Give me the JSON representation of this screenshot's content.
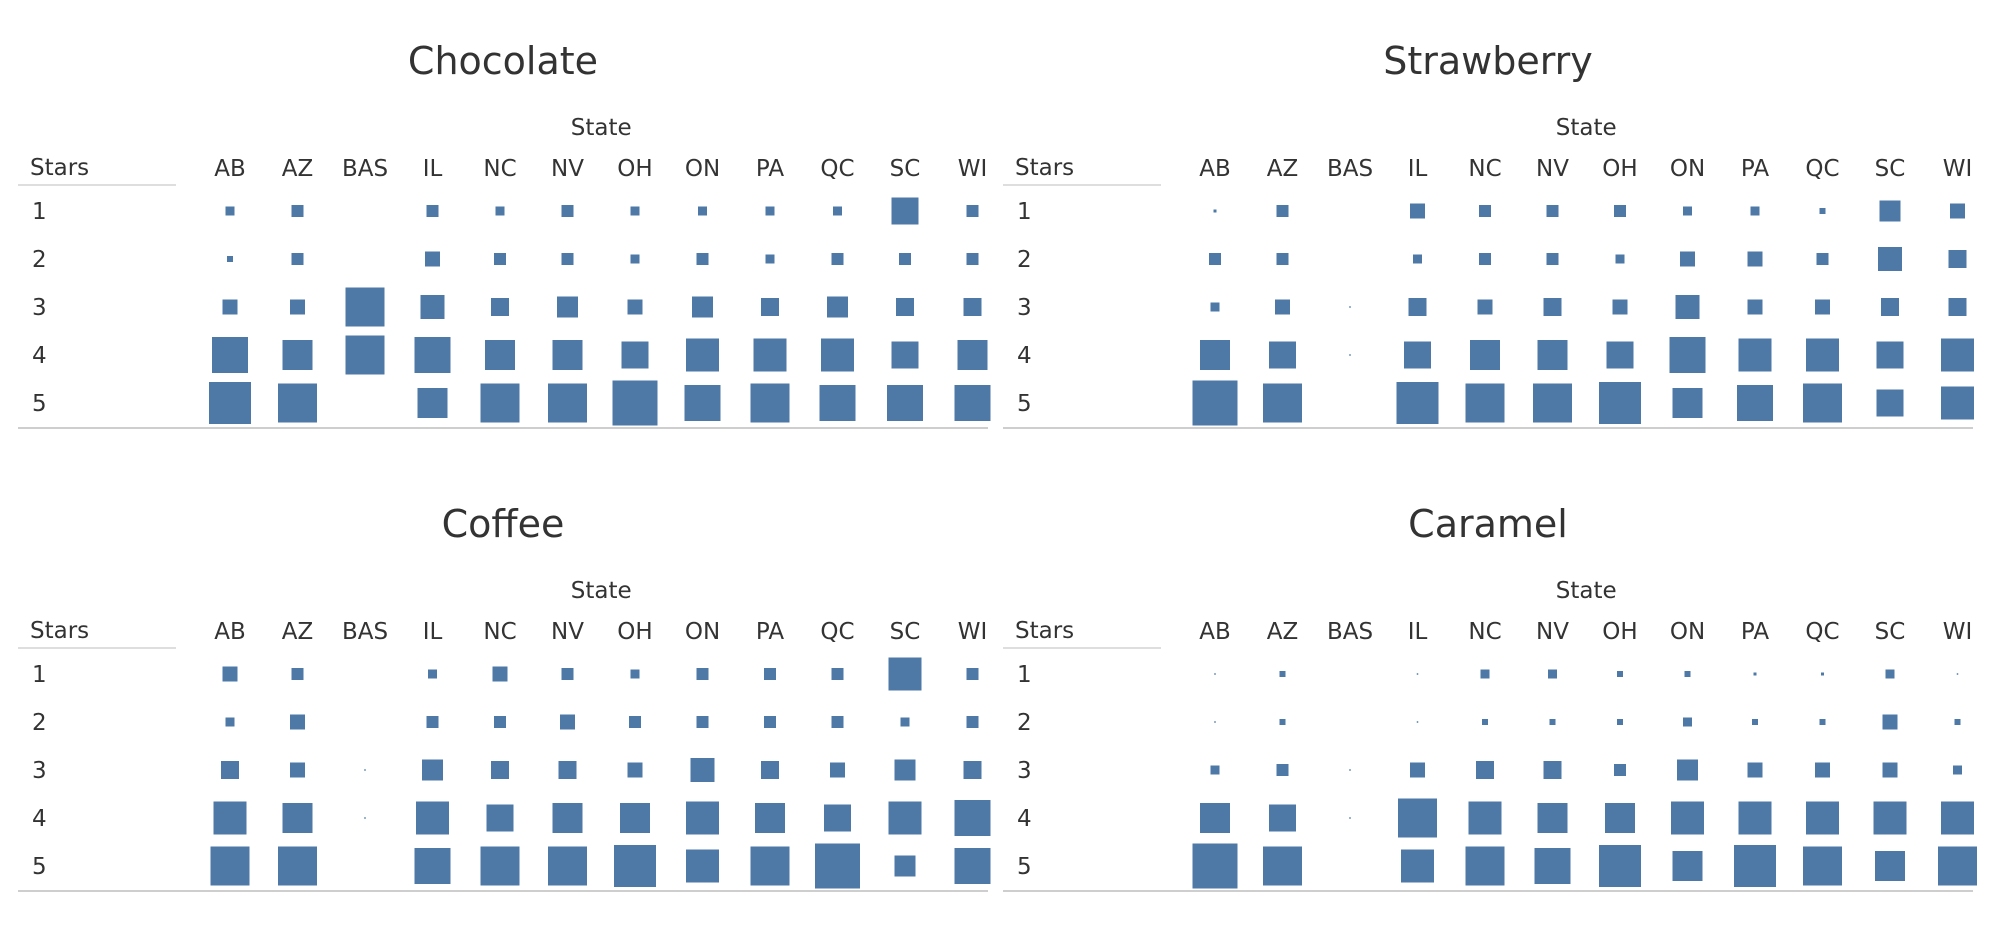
{
  "mark_color": "#4e79a7",
  "chart_data": [
    {
      "type": "heatmap",
      "title": "Chocolate",
      "column_header": "State",
      "row_header": "Stars",
      "x": [
        "AB",
        "AZ",
        "BAS",
        "IL",
        "NC",
        "NV",
        "OH",
        "ON",
        "PA",
        "QC",
        "SC",
        "WI"
      ],
      "y": [
        "1",
        "2",
        "3",
        "4",
        "5"
      ],
      "values": [
        [
          3,
          4,
          0,
          4,
          3,
          4,
          3,
          3,
          3,
          3,
          9,
          4
        ],
        [
          2,
          4,
          0,
          5,
          4,
          4,
          3,
          4,
          3,
          4,
          4,
          4
        ],
        [
          5,
          5,
          13,
          8,
          6,
          7,
          5,
          7,
          6,
          7,
          6,
          6
        ],
        [
          12,
          10,
          13,
          12,
          10,
          10,
          9,
          11,
          11,
          11,
          9,
          10
        ],
        [
          14,
          13,
          0,
          10,
          13,
          13,
          15,
          12,
          13,
          12,
          12,
          12
        ]
      ]
    },
    {
      "type": "heatmap",
      "title": "Strawberry",
      "column_header": "State",
      "row_header": "Stars",
      "x": [
        "AB",
        "AZ",
        "BAS",
        "IL",
        "NC",
        "NV",
        "OH",
        "ON",
        "PA",
        "QC",
        "SC",
        "WI"
      ],
      "y": [
        "1",
        "2",
        "3",
        "4",
        "5"
      ],
      "values": [
        [
          1,
          4,
          0,
          5,
          4,
          4,
          4,
          3,
          3,
          2,
          7,
          5
        ],
        [
          4,
          4,
          0,
          3,
          4,
          4,
          3,
          5,
          5,
          4,
          8,
          6
        ],
        [
          3,
          5,
          0.3,
          6,
          5,
          6,
          5,
          8,
          5,
          5,
          6,
          6
        ],
        [
          10,
          9,
          0.3,
          9,
          10,
          10,
          9,
          12,
          11,
          11,
          9,
          11
        ],
        [
          15,
          13,
          0,
          14,
          13,
          13,
          14,
          10,
          12,
          13,
          9,
          11
        ]
      ]
    },
    {
      "type": "heatmap",
      "title": "Coffee",
      "column_header": "State",
      "row_header": "Stars",
      "x": [
        "AB",
        "AZ",
        "BAS",
        "IL",
        "NC",
        "NV",
        "OH",
        "ON",
        "PA",
        "QC",
        "SC",
        "WI"
      ],
      "y": [
        "1",
        "2",
        "3",
        "4",
        "5"
      ],
      "values": [
        [
          5,
          4,
          0,
          3,
          5,
          4,
          3,
          4,
          4,
          4,
          11,
          4
        ],
        [
          3,
          5,
          0,
          4,
          4,
          5,
          4,
          4,
          4,
          4,
          3,
          4
        ],
        [
          6,
          5,
          0.3,
          7,
          6,
          6,
          5,
          8,
          6,
          5,
          7,
          6
        ],
        [
          11,
          10,
          0.3,
          11,
          9,
          10,
          10,
          11,
          10,
          9,
          11,
          12
        ],
        [
          13,
          13,
          0,
          12,
          13,
          13,
          14,
          11,
          13,
          15,
          7,
          12
        ]
      ]
    },
    {
      "type": "heatmap",
      "title": "Caramel",
      "column_header": "State",
      "row_header": "Stars",
      "x": [
        "AB",
        "AZ",
        "BAS",
        "IL",
        "NC",
        "NV",
        "OH",
        "ON",
        "PA",
        "QC",
        "SC",
        "WI"
      ],
      "y": [
        "1",
        "2",
        "3",
        "4",
        "5"
      ],
      "values": [
        [
          0.5,
          2,
          0,
          0.5,
          3,
          3,
          2,
          2,
          1,
          1,
          3,
          0.5
        ],
        [
          0.5,
          2,
          0,
          0.5,
          2,
          2,
          2,
          3,
          2,
          2,
          5,
          2
        ],
        [
          3,
          4,
          0.3,
          5,
          6,
          6,
          4,
          7,
          5,
          5,
          5,
          3
        ],
        [
          10,
          9,
          0.3,
          13,
          11,
          10,
          10,
          11,
          11,
          11,
          11,
          11
        ],
        [
          15,
          13,
          0,
          11,
          13,
          12,
          14,
          10,
          14,
          13,
          10,
          13
        ]
      ]
    }
  ]
}
